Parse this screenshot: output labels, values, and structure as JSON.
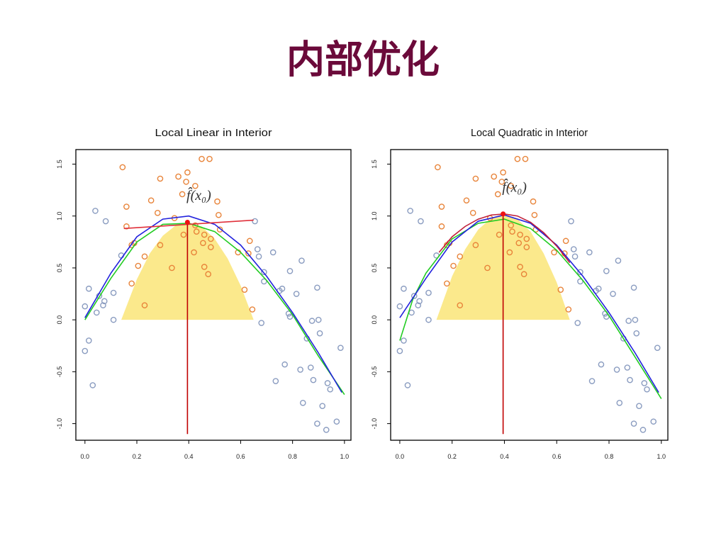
{
  "title": "内部优化",
  "chart_data": [
    {
      "type": "scatter",
      "title": "Local Linear in Interior",
      "annotation": "f̂(x₀)",
      "xlim": [
        -0.035,
        1.025
      ],
      "ylim": [
        -1.16,
        1.64
      ],
      "xticks": [
        {
          "value": 0,
          "label": "0.0"
        },
        0.2,
        0.4,
        0.6,
        0.8,
        {
          "value": 1,
          "label": "1.0"
        }
      ],
      "yticks": [
        {
          "value": -1,
          "label": "-1.0"
        },
        -0.5,
        {
          "value": 0,
          "label": "0.0"
        },
        0.5,
        {
          "value": 1,
          "label": "1.0"
        },
        1.5
      ],
      "series": [
        {
          "type": "area",
          "color": "#fbe98c",
          "x": [
            0.14,
            0.2,
            0.25,
            0.3,
            0.35,
            0.395,
            0.45,
            0.5,
            0.55,
            0.6,
            0.65
          ],
          "values": [
            0,
            0.39,
            0.64,
            0.81,
            0.91,
            0.94,
            0.9,
            0.78,
            0.59,
            0.33,
            0
          ]
        },
        {
          "type": "scatter",
          "color": "#e8843a",
          "x": [
            0.145,
            0.16,
            0.16,
            0.18,
            0.19,
            0.18,
            0.205,
            0.23,
            0.23,
            0.255,
            0.28,
            0.29,
            0.29,
            0.335,
            0.345,
            0.36,
            0.375,
            0.38,
            0.395,
            0.39,
            0.425,
            0.425,
            0.42,
            0.43,
            0.45,
            0.48,
            0.46,
            0.455,
            0.46,
            0.475,
            0.485,
            0.51,
            0.515,
            0.52,
            0.59,
            0.615,
            0.63,
            0.635,
            0.645,
            0.485
          ],
          "values": [
            1.47,
            1.09,
            0.9,
            0.72,
            0.74,
            0.35,
            0.52,
            0.61,
            0.14,
            1.15,
            1.03,
            1.36,
            0.72,
            0.5,
            0.98,
            1.38,
            1.21,
            0.82,
            1.42,
            1.33,
            1.29,
            0.91,
            0.65,
            0.85,
            1.55,
            1.55,
            0.82,
            0.74,
            0.51,
            0.44,
            0.7,
            1.14,
            1.01,
            0.87,
            0.65,
            0.29,
            0.64,
            0.76,
            0.1,
            0.78
          ]
        },
        {
          "type": "scatter",
          "color": "#8a9cc0",
          "x": [
            0,
            0,
            0.015,
            0.015,
            0.03,
            0.04,
            0.045,
            0.055,
            0.07,
            0.075,
            0.08,
            0.11,
            0.11,
            0.14,
            0.655,
            0.665,
            0.67,
            0.68,
            0.69,
            0.69,
            0.725,
            0.735,
            0.75,
            0.76,
            0.77,
            0.785,
            0.79,
            0.79,
            0.815,
            0.835,
            0.84,
            0.83,
            0.855,
            0.875,
            0.87,
            0.88,
            0.895,
            0.895,
            0.9,
            0.905,
            0.915,
            0.93,
            0.935,
            0.945,
            0.97,
            0.985
          ],
          "values": [
            0.13,
            -0.3,
            -0.2,
            0.3,
            -0.63,
            1.05,
            0.07,
            0.23,
            0.14,
            0.18,
            0.95,
            0.26,
            0,
            0.62,
            0.95,
            0.68,
            0.61,
            -0.03,
            0.46,
            0.37,
            0.65,
            -0.59,
            0.28,
            0.3,
            -0.43,
            0.06,
            0.03,
            0.47,
            0.25,
            0.57,
            -0.8,
            -0.48,
            -0.18,
            -0.01,
            -0.46,
            -0.58,
            0.31,
            -1,
            0,
            -0.13,
            -0.83,
            -1.06,
            -0.61,
            -0.67,
            -0.98,
            -0.27
          ]
        },
        {
          "type": "line",
          "color": "#22cc22",
          "x": [
            0,
            0.1,
            0.2,
            0.3,
            0.4,
            0.5,
            0.6,
            0.7,
            0.8,
            0.9,
            1
          ],
          "values": [
            0,
            0.4,
            0.75,
            0.92,
            0.93,
            0.85,
            0.65,
            0.38,
            0.05,
            -0.35,
            -0.72
          ]
        },
        {
          "type": "line",
          "color": "#2222dd",
          "x": [
            0,
            0.1,
            0.2,
            0.3,
            0.4,
            0.5,
            0.6,
            0.7,
            0.8,
            0.9,
            0.99
          ],
          "values": [
            0.02,
            0.45,
            0.8,
            0.97,
            1,
            0.92,
            0.72,
            0.42,
            0.07,
            -0.32,
            -0.7
          ]
        },
        {
          "type": "line",
          "color": "#e0303a",
          "x": [
            0.15,
            0.65
          ],
          "values": [
            0.88,
            0.96
          ]
        },
        {
          "type": "line",
          "color": "#c00000",
          "x": [
            0.395,
            0.395
          ],
          "values": [
            -1.1,
            0.94
          ]
        },
        {
          "type": "point",
          "color": "#ee1111",
          "x": [
            0.395
          ],
          "values": [
            0.94
          ]
        }
      ]
    },
    {
      "type": "scatter",
      "title": "Local Quadratic in Interior",
      "annotation": "f̂(x₀)",
      "xlim": [
        -0.035,
        1.025
      ],
      "ylim": [
        -1.16,
        1.64
      ],
      "xticks": [
        {
          "value": 0,
          "label": "0.0"
        },
        0.2,
        0.4,
        0.6,
        0.8,
        {
          "value": 1,
          "label": "1.0"
        }
      ],
      "yticks": [
        {
          "value": -1,
          "label": "-1.0"
        },
        -0.5,
        {
          "value": 0,
          "label": "0.0"
        },
        0.5,
        {
          "value": 1,
          "label": "1.0"
        },
        1.5
      ],
      "series": [
        {
          "type": "area",
          "color": "#fbe98c",
          "x": [
            0.14,
            0.2,
            0.25,
            0.3,
            0.35,
            0.395,
            0.45,
            0.5,
            0.55,
            0.6,
            0.65
          ],
          "values": [
            0,
            0.42,
            0.68,
            0.87,
            0.98,
            1.02,
            0.97,
            0.85,
            0.64,
            0.36,
            0
          ]
        },
        {
          "type": "scatter",
          "color": "#e8843a",
          "x": [
            0.145,
            0.16,
            0.16,
            0.18,
            0.19,
            0.18,
            0.205,
            0.23,
            0.23,
            0.255,
            0.28,
            0.29,
            0.29,
            0.335,
            0.345,
            0.36,
            0.375,
            0.38,
            0.395,
            0.39,
            0.425,
            0.425,
            0.42,
            0.43,
            0.45,
            0.48,
            0.46,
            0.455,
            0.46,
            0.475,
            0.485,
            0.51,
            0.515,
            0.52,
            0.59,
            0.615,
            0.63,
            0.635,
            0.645,
            0.485
          ],
          "values": [
            1.47,
            1.09,
            0.9,
            0.72,
            0.74,
            0.35,
            0.52,
            0.61,
            0.14,
            1.15,
            1.03,
            1.36,
            0.72,
            0.5,
            0.98,
            1.38,
            1.21,
            0.82,
            1.42,
            1.33,
            1.29,
            0.91,
            0.65,
            0.85,
            1.55,
            1.55,
            0.82,
            0.74,
            0.51,
            0.44,
            0.7,
            1.14,
            1.01,
            0.87,
            0.65,
            0.29,
            0.64,
            0.76,
            0.1,
            0.78
          ]
        },
        {
          "type": "scatter",
          "color": "#8a9cc0",
          "x": [
            0,
            0,
            0.015,
            0.015,
            0.03,
            0.04,
            0.045,
            0.055,
            0.07,
            0.075,
            0.08,
            0.11,
            0.11,
            0.14,
            0.655,
            0.665,
            0.67,
            0.68,
            0.69,
            0.69,
            0.725,
            0.735,
            0.75,
            0.76,
            0.77,
            0.785,
            0.79,
            0.79,
            0.815,
            0.835,
            0.84,
            0.83,
            0.855,
            0.875,
            0.87,
            0.88,
            0.895,
            0.895,
            0.9,
            0.905,
            0.915,
            0.93,
            0.935,
            0.945,
            0.97,
            0.985
          ],
          "values": [
            0.13,
            -0.3,
            -0.2,
            0.3,
            -0.63,
            1.05,
            0.07,
            0.23,
            0.14,
            0.18,
            0.95,
            0.26,
            0,
            0.62,
            0.95,
            0.68,
            0.61,
            -0.03,
            0.46,
            0.37,
            0.65,
            -0.59,
            0.28,
            0.3,
            -0.43,
            0.06,
            0.03,
            0.47,
            0.25,
            0.57,
            -0.8,
            -0.48,
            -0.18,
            -0.01,
            -0.46,
            -0.58,
            0.31,
            -1,
            0,
            -0.13,
            -0.83,
            -1.06,
            -0.61,
            -0.67,
            -0.98,
            -0.27
          ]
        },
        {
          "type": "line",
          "color": "#22cc22",
          "x": [
            0,
            0.05,
            0.1,
            0.2,
            0.3,
            0.4,
            0.5,
            0.6,
            0.7,
            0.8,
            0.9,
            1
          ],
          "values": [
            -0.2,
            0.2,
            0.45,
            0.78,
            0.93,
            0.97,
            0.88,
            0.67,
            0.38,
            0.04,
            -0.36,
            -0.76
          ]
        },
        {
          "type": "line",
          "color": "#2222dd",
          "x": [
            0,
            0.1,
            0.2,
            0.3,
            0.4,
            0.5,
            0.6,
            0.7,
            0.8,
            0.9,
            0.99
          ],
          "values": [
            0.02,
            0.4,
            0.75,
            0.95,
            1.01,
            0.93,
            0.72,
            0.42,
            0.07,
            -0.32,
            -0.7
          ]
        },
        {
          "type": "line",
          "color": "#c0203a",
          "x": [
            0.15,
            0.2,
            0.25,
            0.3,
            0.35,
            0.4,
            0.45,
            0.5,
            0.55,
            0.6,
            0.65
          ],
          "values": [
            0.65,
            0.8,
            0.9,
            0.97,
            1.01,
            1.02,
            1,
            0.94,
            0.84,
            0.71,
            0.55
          ]
        },
        {
          "type": "line",
          "color": "#c00000",
          "x": [
            0.395,
            0.395
          ],
          "values": [
            -1.1,
            1.02
          ]
        },
        {
          "type": "point",
          "color": "#ee1111",
          "x": [
            0.395
          ],
          "values": [
            1.02
          ]
        }
      ]
    }
  ]
}
